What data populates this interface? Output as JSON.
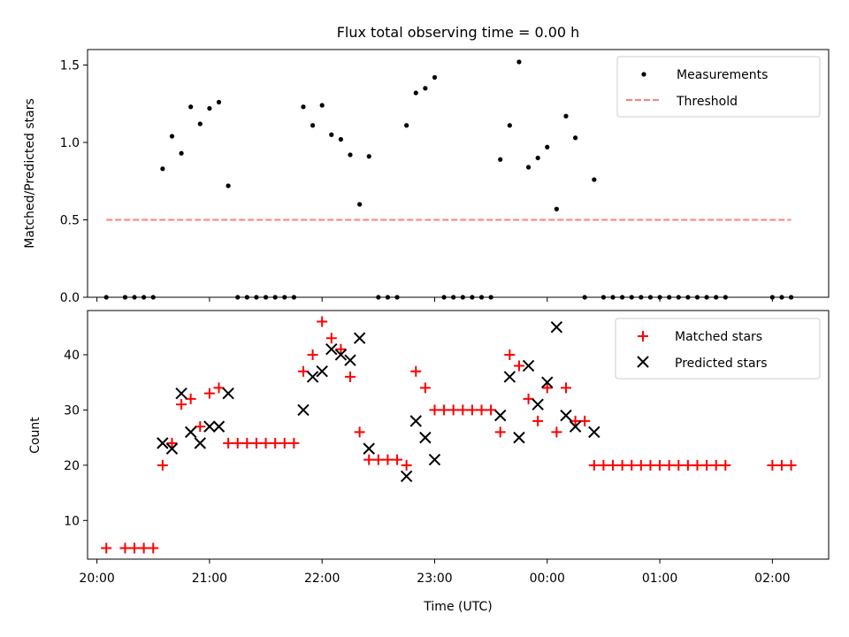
{
  "chart_data": [
    {
      "type": "scatter",
      "title": "Flux total observing time = 0.00 h",
      "xlabel": "",
      "ylabel": "Matched/Predicted stars",
      "xlim": [
        "19:55",
        "02:30"
      ],
      "ylim": [
        0,
        1.6
      ],
      "yticks": [
        0.0,
        0.5,
        1.0,
        1.5
      ],
      "ytick_labels": [
        "0.0",
        "0.5",
        "1.0",
        "1.5"
      ],
      "legend_position": "top-right",
      "legend": [
        {
          "label": "Measurements",
          "marker": "dot",
          "color": "#000000"
        },
        {
          "label": "Threshold",
          "marker": "dashed-line",
          "color": "#ff7f7f"
        }
      ],
      "threshold": {
        "value": 0.5,
        "x": [
          "20:05",
          "02:10"
        ]
      },
      "series": [
        {
          "name": "Measurements",
          "points": [
            [
              "20:05",
              0
            ],
            [
              "20:15",
              0
            ],
            [
              "20:20",
              0
            ],
            [
              "20:25",
              0
            ],
            [
              "20:30",
              0
            ],
            [
              "20:35",
              0.83
            ],
            [
              "20:40",
              1.04
            ],
            [
              "20:45",
              0.93
            ],
            [
              "20:50",
              1.23
            ],
            [
              "20:55",
              1.12
            ],
            [
              "21:00",
              1.22
            ],
            [
              "21:05",
              1.26
            ],
            [
              "21:10",
              0.72
            ],
            [
              "21:15",
              0
            ],
            [
              "21:20",
              0
            ],
            [
              "21:25",
              0
            ],
            [
              "21:30",
              0
            ],
            [
              "21:35",
              0
            ],
            [
              "21:40",
              0
            ],
            [
              "21:45",
              0
            ],
            [
              "21:50",
              1.23
            ],
            [
              "21:55",
              1.11
            ],
            [
              "22:00",
              1.24
            ],
            [
              "22:05",
              1.05
            ],
            [
              "22:10",
              1.02
            ],
            [
              "22:15",
              0.92
            ],
            [
              "22:20",
              0.6
            ],
            [
              "22:25",
              0.91
            ],
            [
              "22:30",
              0
            ],
            [
              "22:35",
              0
            ],
            [
              "22:40",
              0
            ],
            [
              "22:45",
              1.11
            ],
            [
              "22:50",
              1.32
            ],
            [
              "22:55",
              1.35
            ],
            [
              "23:00",
              1.42
            ],
            [
              "23:05",
              0
            ],
            [
              "23:10",
              0
            ],
            [
              "23:15",
              0
            ],
            [
              "23:20",
              0
            ],
            [
              "23:25",
              0
            ],
            [
              "23:30",
              0
            ],
            [
              "23:35",
              0.89
            ],
            [
              "23:40",
              1.11
            ],
            [
              "23:45",
              1.52
            ],
            [
              "23:50",
              0.84
            ],
            [
              "23:55",
              0.9
            ],
            [
              "00:00",
              0.97
            ],
            [
              "00:05",
              0.57
            ],
            [
              "00:10",
              1.17
            ],
            [
              "00:15",
              1.03
            ],
            [
              "00:20",
              0
            ],
            [
              "00:25",
              0.76
            ],
            [
              "00:30",
              0
            ],
            [
              "00:35",
              0
            ],
            [
              "00:40",
              0
            ],
            [
              "00:45",
              0
            ],
            [
              "00:50",
              0
            ],
            [
              "00:55",
              0
            ],
            [
              "01:00",
              0
            ],
            [
              "01:05",
              0
            ],
            [
              "01:10",
              0
            ],
            [
              "01:15",
              0
            ],
            [
              "01:20",
              0
            ],
            [
              "01:25",
              0
            ],
            [
              "01:30",
              0
            ],
            [
              "01:35",
              0
            ],
            [
              "02:00",
              0
            ],
            [
              "02:05",
              0
            ],
            [
              "02:10",
              0
            ]
          ]
        }
      ]
    },
    {
      "type": "scatter",
      "title": "",
      "xlabel": "Time (UTC)",
      "ylabel": "Count",
      "xlim": [
        "19:55",
        "02:30"
      ],
      "ylim": [
        3,
        48
      ],
      "xticks": [
        "20:00",
        "21:00",
        "22:00",
        "23:00",
        "00:00",
        "01:00",
        "02:00"
      ],
      "yticks": [
        10,
        20,
        30,
        40
      ],
      "legend_position": "top-right",
      "legend": [
        {
          "label": "Matched stars",
          "marker": "plus",
          "color": "#ff0000"
        },
        {
          "label": "Predicted stars",
          "marker": "x",
          "color": "#000000"
        }
      ],
      "series": [
        {
          "name": "Matched stars",
          "points": [
            [
              "20:05",
              5
            ],
            [
              "20:15",
              5
            ],
            [
              "20:20",
              5
            ],
            [
              "20:25",
              5
            ],
            [
              "20:30",
              5
            ],
            [
              "20:35",
              20
            ],
            [
              "20:40",
              24
            ],
            [
              "20:45",
              31
            ],
            [
              "20:50",
              32
            ],
            [
              "20:55",
              27
            ],
            [
              "21:00",
              33
            ],
            [
              "21:05",
              34
            ],
            [
              "21:10",
              24
            ],
            [
              "21:15",
              24
            ],
            [
              "21:20",
              24
            ],
            [
              "21:25",
              24
            ],
            [
              "21:30",
              24
            ],
            [
              "21:35",
              24
            ],
            [
              "21:40",
              24
            ],
            [
              "21:45",
              24
            ],
            [
              "21:50",
              37
            ],
            [
              "21:55",
              40
            ],
            [
              "22:00",
              46
            ],
            [
              "22:05",
              43
            ],
            [
              "22:10",
              41
            ],
            [
              "22:15",
              36
            ],
            [
              "22:20",
              26
            ],
            [
              "22:25",
              21
            ],
            [
              "22:30",
              21
            ],
            [
              "22:35",
              21
            ],
            [
              "22:40",
              21
            ],
            [
              "22:45",
              20
            ],
            [
              "22:50",
              37
            ],
            [
              "22:55",
              34
            ],
            [
              "23:00",
              30
            ],
            [
              "23:05",
              30
            ],
            [
              "23:10",
              30
            ],
            [
              "23:15",
              30
            ],
            [
              "23:20",
              30
            ],
            [
              "23:25",
              30
            ],
            [
              "23:30",
              30
            ],
            [
              "23:35",
              26
            ],
            [
              "23:40",
              40
            ],
            [
              "23:45",
              38
            ],
            [
              "23:50",
              32
            ],
            [
              "23:55",
              28
            ],
            [
              "00:00",
              34
            ],
            [
              "00:05",
              26
            ],
            [
              "00:10",
              34
            ],
            [
              "00:15",
              28
            ],
            [
              "00:20",
              28
            ],
            [
              "00:25",
              20
            ],
            [
              "00:30",
              20
            ],
            [
              "00:35",
              20
            ],
            [
              "00:40",
              20
            ],
            [
              "00:45",
              20
            ],
            [
              "00:50",
              20
            ],
            [
              "00:55",
              20
            ],
            [
              "01:00",
              20
            ],
            [
              "01:05",
              20
            ],
            [
              "01:10",
              20
            ],
            [
              "01:15",
              20
            ],
            [
              "01:20",
              20
            ],
            [
              "01:25",
              20
            ],
            [
              "01:30",
              20
            ],
            [
              "01:35",
              20
            ],
            [
              "02:00",
              20
            ],
            [
              "02:05",
              20
            ],
            [
              "02:10",
              20
            ]
          ]
        },
        {
          "name": "Predicted stars",
          "points": [
            [
              "20:35",
              24
            ],
            [
              "20:40",
              23
            ],
            [
              "20:45",
              33
            ],
            [
              "20:50",
              26
            ],
            [
              "20:55",
              24
            ],
            [
              "21:00",
              27
            ],
            [
              "21:05",
              27
            ],
            [
              "21:10",
              33
            ],
            [
              "21:50",
              30
            ],
            [
              "21:55",
              36
            ],
            [
              "22:00",
              37
            ],
            [
              "22:05",
              41
            ],
            [
              "22:10",
              40
            ],
            [
              "22:15",
              39
            ],
            [
              "22:20",
              43
            ],
            [
              "22:25",
              23
            ],
            [
              "22:45",
              18
            ],
            [
              "22:50",
              28
            ],
            [
              "22:55",
              25
            ],
            [
              "23:00",
              21
            ],
            [
              "23:35",
              29
            ],
            [
              "23:40",
              36
            ],
            [
              "23:45",
              25
            ],
            [
              "23:50",
              38
            ],
            [
              "23:55",
              31
            ],
            [
              "00:00",
              35
            ],
            [
              "00:05",
              45
            ],
            [
              "00:10",
              29
            ],
            [
              "00:15",
              27
            ],
            [
              "00:25",
              26
            ]
          ]
        }
      ]
    }
  ]
}
